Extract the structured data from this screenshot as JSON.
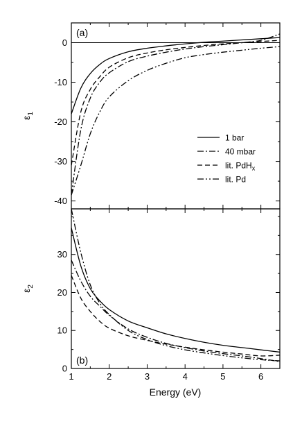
{
  "chart_data": [
    {
      "type": "line",
      "panel": "(a)",
      "ylabel": "ε",
      "ylabel_sub": "1",
      "xlim": [
        1,
        6.5
      ],
      "ylim": [
        -42,
        5
      ],
      "xticks": [
        1,
        2,
        3,
        4,
        5,
        6
      ],
      "yticks": [
        0,
        -10,
        -20,
        -30,
        -40
      ],
      "zero_line": true,
      "legend": {
        "placement": "lower-right"
      },
      "series": [
        {
          "name": "1 bar",
          "style": "solid",
          "x": [
            1.0,
            1.25,
            1.5,
            1.75,
            2.0,
            2.5,
            3.0,
            3.5,
            4.0,
            4.5,
            5.0,
            5.5,
            6.0,
            6.5
          ],
          "y": [
            -18.0,
            -11.5,
            -7.8,
            -5.5,
            -4.0,
            -2.3,
            -1.4,
            -0.8,
            -0.3,
            0.1,
            0.4,
            0.7,
            1.0,
            1.3
          ]
        },
        {
          "name": "40 mbar",
          "style": "dashdot",
          "x": [
            1.0,
            1.25,
            1.5,
            1.75,
            2.0,
            2.5,
            3.0,
            3.5,
            4.0,
            4.5,
            5.0,
            5.5,
            6.0,
            6.5
          ],
          "y": [
            -38.5,
            -22.0,
            -14.0,
            -10.0,
            -7.6,
            -4.8,
            -3.4,
            -2.4,
            -1.6,
            -1.0,
            -0.5,
            0.0,
            0.6,
            2.2
          ]
        },
        {
          "name": "lit. PdH",
          "name_sub": "x",
          "style": "dashed",
          "x": [
            1.0,
            1.25,
            1.5,
            1.75,
            2.0,
            2.5,
            3.0,
            3.5,
            4.0,
            4.5,
            5.0,
            5.5,
            6.0,
            6.5
          ],
          "y": [
            -31.0,
            -17.5,
            -11.8,
            -8.6,
            -6.2,
            -3.8,
            -2.6,
            -1.8,
            -1.2,
            -0.7,
            -0.3,
            0.0,
            0.3,
            0.6
          ]
        },
        {
          "name": "lit. Pd",
          "style": "dashdotdot",
          "x": [
            1.0,
            1.25,
            1.5,
            1.75,
            2.0,
            2.5,
            3.0,
            3.5,
            4.0,
            4.5,
            5.0,
            5.5,
            6.0,
            6.5
          ],
          "y": [
            -38.5,
            -31.0,
            -23.0,
            -17.5,
            -13.7,
            -9.6,
            -7.0,
            -5.2,
            -3.8,
            -3.0,
            -2.4,
            -1.9,
            -1.4,
            -1.0
          ]
        }
      ]
    },
    {
      "type": "line",
      "panel": "(b)",
      "xlabel": "Energy (eV)",
      "ylabel": "ε",
      "ylabel_sub": "2",
      "xlim": [
        1,
        6.5
      ],
      "ylim": [
        0,
        42
      ],
      "xticks": [
        1,
        2,
        3,
        4,
        5,
        6
      ],
      "yticks": [
        0,
        10,
        20,
        30
      ],
      "series": [
        {
          "name": "1 bar",
          "style": "solid",
          "x": [
            1.0,
            1.25,
            1.5,
            1.75,
            2.0,
            2.5,
            3.0,
            3.5,
            4.0,
            4.5,
            5.0,
            5.5,
            6.0,
            6.5
          ],
          "y": [
            37.0,
            27.0,
            21.0,
            17.8,
            15.5,
            12.5,
            10.7,
            9.1,
            7.9,
            6.9,
            6.1,
            5.5,
            4.9,
            4.3
          ]
        },
        {
          "name": "40 mbar",
          "style": "dashdot",
          "x": [
            1.0,
            1.25,
            1.5,
            1.75,
            2.0,
            2.5,
            3.0,
            3.5,
            4.0,
            4.5,
            5.0,
            5.5,
            6.0,
            6.5
          ],
          "y": [
            28.5,
            23.0,
            19.0,
            16.4,
            14.0,
            10.4,
            8.2,
            6.6,
            5.5,
            4.6,
            3.9,
            3.3,
            2.6,
            1.8
          ]
        },
        {
          "name": "lit. PdHx",
          "style": "dashed",
          "x": [
            1.0,
            1.25,
            1.5,
            1.75,
            2.0,
            2.5,
            3.0,
            3.5,
            4.0,
            4.5,
            5.0,
            5.5,
            6.0,
            6.5
          ],
          "y": [
            24.5,
            18.5,
            15.0,
            12.4,
            10.6,
            8.6,
            7.4,
            6.4,
            5.6,
            4.9,
            4.3,
            3.8,
            3.3,
            3.5
          ]
        },
        {
          "name": "lit. Pd",
          "style": "dashdotdot",
          "x": [
            1.0,
            1.25,
            1.5,
            1.75,
            2.0,
            2.5,
            3.0,
            3.5,
            4.0,
            4.5,
            5.0,
            5.5,
            6.0,
            6.5
          ],
          "y": [
            42.0,
            30.5,
            22.0,
            17.2,
            14.2,
            10.0,
            7.6,
            6.0,
            4.9,
            4.1,
            3.4,
            2.8,
            2.3,
            2.0
          ]
        }
      ]
    }
  ]
}
